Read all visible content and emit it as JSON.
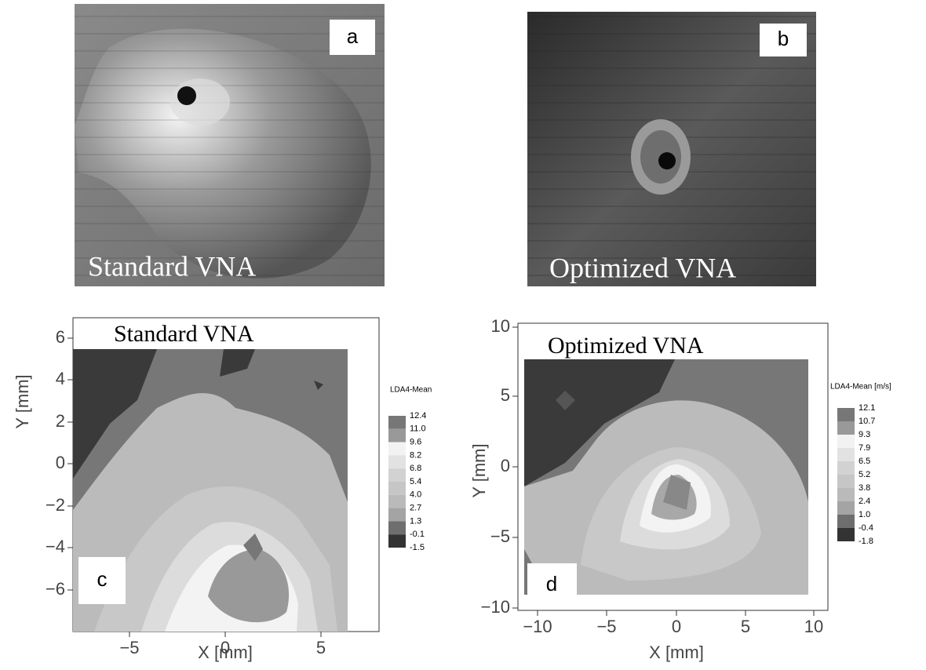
{
  "panels": [
    {
      "label": "a",
      "caption": "Standard VNA"
    },
    {
      "label": "b",
      "caption": "Optimized VNA"
    },
    {
      "label": "c",
      "title": "Standard VNA",
      "x_label": "X [mm]",
      "y_label": "Y [mm]",
      "x_ticks": [
        "−5",
        "0",
        "5"
      ],
      "y_ticks": [
        "6",
        "4",
        "2",
        "0",
        "−2",
        "−4",
        "−6"
      ],
      "legend_title": "LDA4-Mean",
      "legend_labels": [
        "12.4",
        "11.0",
        "9.6",
        "8.2",
        "6.8",
        "5.4",
        "4.0",
        "2.7",
        "1.3",
        "-0.1",
        "-1.5"
      ]
    },
    {
      "label": "d",
      "title": "Optimized VNA",
      "x_label": "X [mm]",
      "y_label": "Y [mm]",
      "x_ticks": [
        "−10",
        "−5",
        "0",
        "5",
        "10"
      ],
      "y_ticks": [
        "10",
        "5",
        "0",
        "−5",
        "−10"
      ],
      "legend_title": "LDA4-Mean [m/s]",
      "legend_labels": [
        "12.1",
        "10.7",
        "9.3",
        "7.9",
        "6.5",
        "5.2",
        "3.8",
        "2.4",
        "1.0",
        "-0.4",
        "-1.8"
      ]
    }
  ]
}
